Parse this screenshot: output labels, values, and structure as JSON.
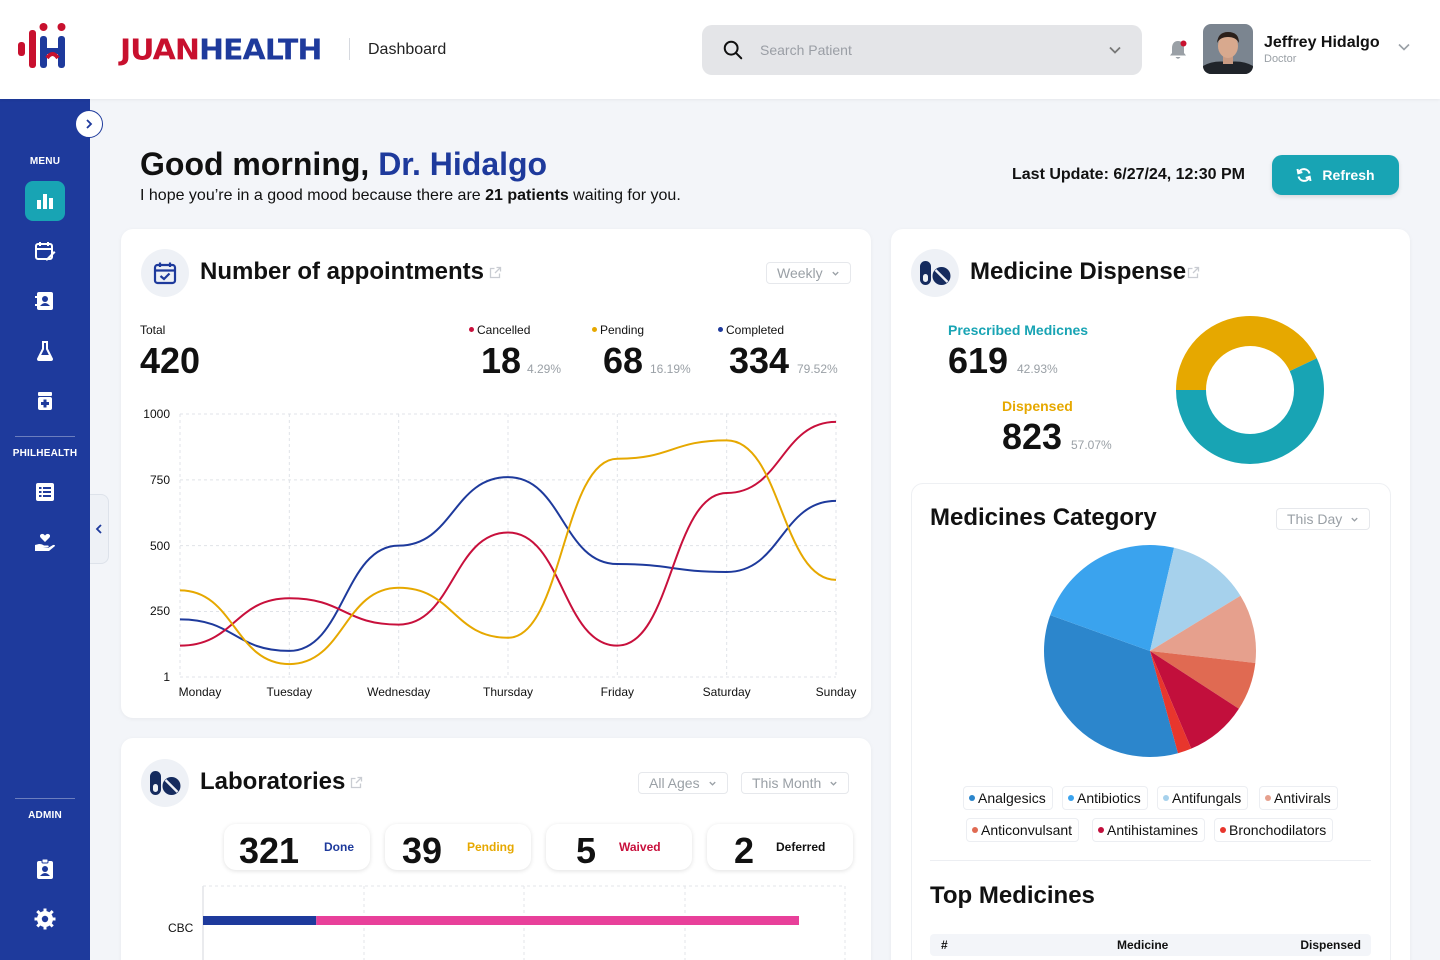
{
  "header": {
    "brand_part1": "JUAN",
    "brand_part2": "HEALTH",
    "page_title": "Dashboard",
    "search_placeholder": "Search Patient",
    "user_name": "Jeffrey Hidalgo",
    "user_role": "Doctor"
  },
  "sidebar": {
    "menu_label": "MENU",
    "philhealth_label": "PHILHEALTH",
    "admin_label": "ADMIN"
  },
  "greeting": {
    "prefix": "Good morning, ",
    "doctor": "Dr. Hidalgo",
    "sub_before": "I hope you’re in a good mood because there are ",
    "sub_bold": "21 patients",
    "sub_after": " waiting for you.",
    "last_update": "Last Update: 6/27/24, 12:30 PM",
    "refresh_label": "Refresh"
  },
  "appointments": {
    "title": "Number of appointments",
    "period": "Weekly",
    "total_label": "Total",
    "total": "420",
    "cancelled_label": "Cancelled",
    "cancelled": "18",
    "cancelled_pct": "4.29%",
    "pending_label": "Pending",
    "pending": "68",
    "pending_pct": "16.19%",
    "completed_label": "Completed",
    "completed": "334",
    "completed_pct": "79.52%"
  },
  "chart_data": [
    {
      "type": "line",
      "x": [
        "Monday",
        "Tuesday",
        "Wednesday",
        "Thursday",
        "Friday",
        "Saturday",
        "Sunday"
      ],
      "yticks": [
        "1000",
        "750",
        "500",
        "250",
        "1"
      ],
      "ylim": [
        1,
        1000
      ],
      "grid": true,
      "series": [
        {
          "name": "Completed",
          "color": "#1e3a9c",
          "values": [
            220,
            100,
            500,
            760,
            430,
            400,
            670
          ]
        },
        {
          "name": "Cancelled",
          "color": "#c8103c",
          "values": [
            120,
            300,
            200,
            550,
            120,
            700,
            970
          ]
        },
        {
          "name": "Pending",
          "color": "#e6a800",
          "values": [
            330,
            50,
            340,
            150,
            830,
            900,
            370
          ]
        }
      ]
    },
    {
      "type": "pie",
      "categories": [
        "Prescribed Medicnes",
        "Dispensed"
      ],
      "values": [
        42.93,
        57.07
      ],
      "colors": [
        "#e6a800",
        "#18a4b4"
      ],
      "donut": true
    },
    {
      "type": "pie",
      "categories": [
        "Analgesics",
        "Antibiotics",
        "Antifungals",
        "Antivirals",
        "Anticonvulsant",
        "Antihistamines",
        "Bronchodilators"
      ],
      "values": [
        33,
        22,
        12,
        10,
        7,
        9,
        2
      ],
      "colors": [
        "#2c86cc",
        "#3aa3ee",
        "#a6d1ec",
        "#e6a08d",
        "#e06a52",
        "#c20f3c",
        "#e8362d"
      ]
    },
    {
      "type": "bar",
      "categories": [
        "CBC"
      ],
      "series": [
        {
          "name": "Done",
          "color": "#1e3a9c",
          "values": [
            19
          ]
        },
        {
          "name": "Pending",
          "color": "#e8409a",
          "values": [
            81
          ]
        }
      ]
    }
  ],
  "laboratories": {
    "title": "Laboratories",
    "age_filter": "All Ages",
    "period": "This Month",
    "done": "321",
    "done_label": "Done",
    "pending": "39",
    "pending_label": "Pending",
    "waived": "5",
    "waived_label": "Waived",
    "deferred": "2",
    "deferred_label": "Deferred",
    "bar_category": "CBC"
  },
  "medicine_dispense": {
    "title": "Medicine Dispense",
    "prescribed_label": "Prescribed Medicnes",
    "prescribed": "619",
    "prescribed_pct": "42.93%",
    "dispensed_label": "Dispensed",
    "dispensed": "823",
    "dispensed_pct": "57.07%"
  },
  "medicines_category": {
    "title": "Medicines Category",
    "period": "This Day",
    "legend": [
      "Analgesics",
      "Antibiotics",
      "Antifungals",
      "Antivirals",
      "Anticonvulsant",
      "Antihistamines",
      "Bronchodilators"
    ]
  },
  "top_medicines": {
    "title": "Top Medicines",
    "col_num": "#",
    "col_medicine": "Medicine",
    "col_dispensed": "Dispensed"
  },
  "colors": {
    "primary": "#1e3a9c",
    "accent": "#18a4b4",
    "red": "#c8103c",
    "amber": "#e6a800"
  }
}
